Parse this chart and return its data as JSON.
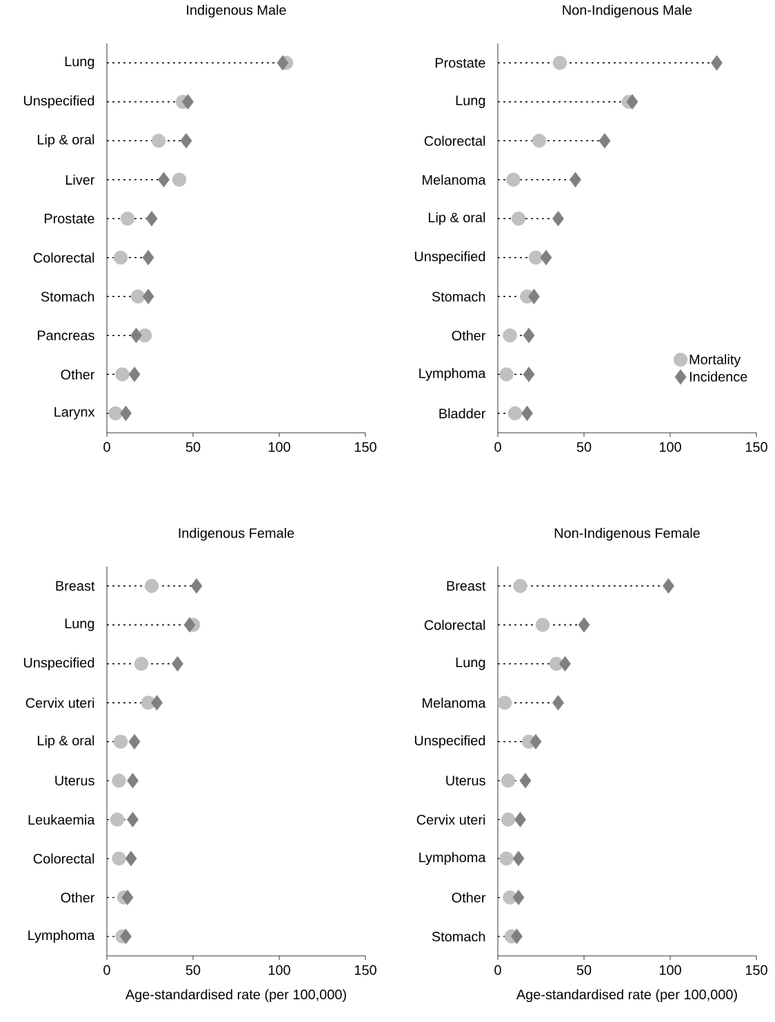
{
  "chart_data": [
    {
      "type": "scatter",
      "orientation": "horizontal",
      "title": "Indigenous Male",
      "categories": [
        "Lung",
        "Unspecified",
        "Lip & oral",
        "Liver",
        "Prostate",
        "Colorectal",
        "Stomach",
        "Pancreas",
        "Other",
        "Larynx"
      ],
      "xlim": [
        0,
        150
      ],
      "xticks": [
        0,
        50,
        100,
        150
      ],
      "legend": false,
      "series": [
        {
          "marker": "circle",
          "color": "#c0c0c0",
          "values": [
            104,
            44,
            30,
            42,
            12,
            8,
            18,
            22,
            9,
            5
          ]
        },
        {
          "type": "lollipop",
          "marker": "diamond",
          "color": "#808080",
          "line_style": "dotted",
          "values": [
            102,
            47,
            46,
            33,
            26,
            24,
            24,
            17,
            16,
            11
          ]
        }
      ]
    },
    {
      "type": "scatter",
      "orientation": "horizontal",
      "title": "Non-Indigenous Male",
      "categories": [
        "Prostate",
        "Lung",
        "Colorectal",
        "Melanoma",
        "Lip & oral",
        "Unspecified",
        "Stomach",
        "Other",
        "Lymphoma",
        "Bladder"
      ],
      "xlim": [
        0,
        150
      ],
      "xticks": [
        0,
        50,
        100,
        150
      ],
      "legend": "bottom right",
      "series": [
        {
          "name": "Mortality",
          "marker": "circle",
          "color": "#c0c0c0",
          "values": [
            36,
            76,
            24,
            9,
            12,
            22,
            17,
            7,
            5,
            10
          ]
        },
        {
          "type": "lollipop",
          "name": "Incidence",
          "marker": "diamond",
          "color": "#808080",
          "line_style": "dotted",
          "values": [
            127,
            78,
            62,
            45,
            35,
            28,
            21,
            18,
            18,
            17
          ]
        }
      ]
    },
    {
      "type": "scatter",
      "orientation": "horizontal",
      "title": "Indigenous Female",
      "categories": [
        "Breast",
        "Lung",
        "Unspecified",
        "Cervix uteri",
        "Lip & oral",
        "Uterus",
        "Leukaemia",
        "Colorectal",
        "Other",
        "Lymphoma"
      ],
      "xlim": [
        0,
        150
      ],
      "xticks": [
        0,
        50,
        100,
        150
      ],
      "legend": false,
      "xlabel": "Age-standardised rate (per 100,000)",
      "series": [
        {
          "marker": "circle",
          "color": "#c0c0c0",
          "values": [
            26,
            50,
            20,
            24,
            8,
            7,
            6,
            7,
            10,
            9
          ]
        },
        {
          "type": "lollipop",
          "marker": "diamond",
          "color": "#808080",
          "line_style": "dotted",
          "values": [
            52,
            48,
            41,
            29,
            16,
            15,
            15,
            14,
            12,
            11
          ]
        }
      ]
    },
    {
      "type": "scatter",
      "orientation": "horizontal",
      "title": "Non-Indigenous Female",
      "categories": [
        "Breast",
        "Colorectal",
        "Lung",
        "Melanoma",
        "Unspecified",
        "Uterus",
        "Cervix uteri",
        "Lymphoma",
        "Other",
        "Stomach"
      ],
      "xlim": [
        0,
        150
      ],
      "xticks": [
        0,
        50,
        100,
        150
      ],
      "legend": false,
      "xlabel": "Age-standardised rate (per 100,000)",
      "series": [
        {
          "marker": "circle",
          "color": "#c0c0c0",
          "values": [
            13,
            26,
            34,
            4,
            18,
            6,
            6,
            5,
            7,
            8
          ]
        },
        {
          "type": "lollipop",
          "marker": "diamond",
          "color": "#808080",
          "line_style": "dotted",
          "values": [
            99,
            50,
            39,
            35,
            22,
            16,
            13,
            12,
            12,
            11
          ]
        }
      ]
    }
  ]
}
